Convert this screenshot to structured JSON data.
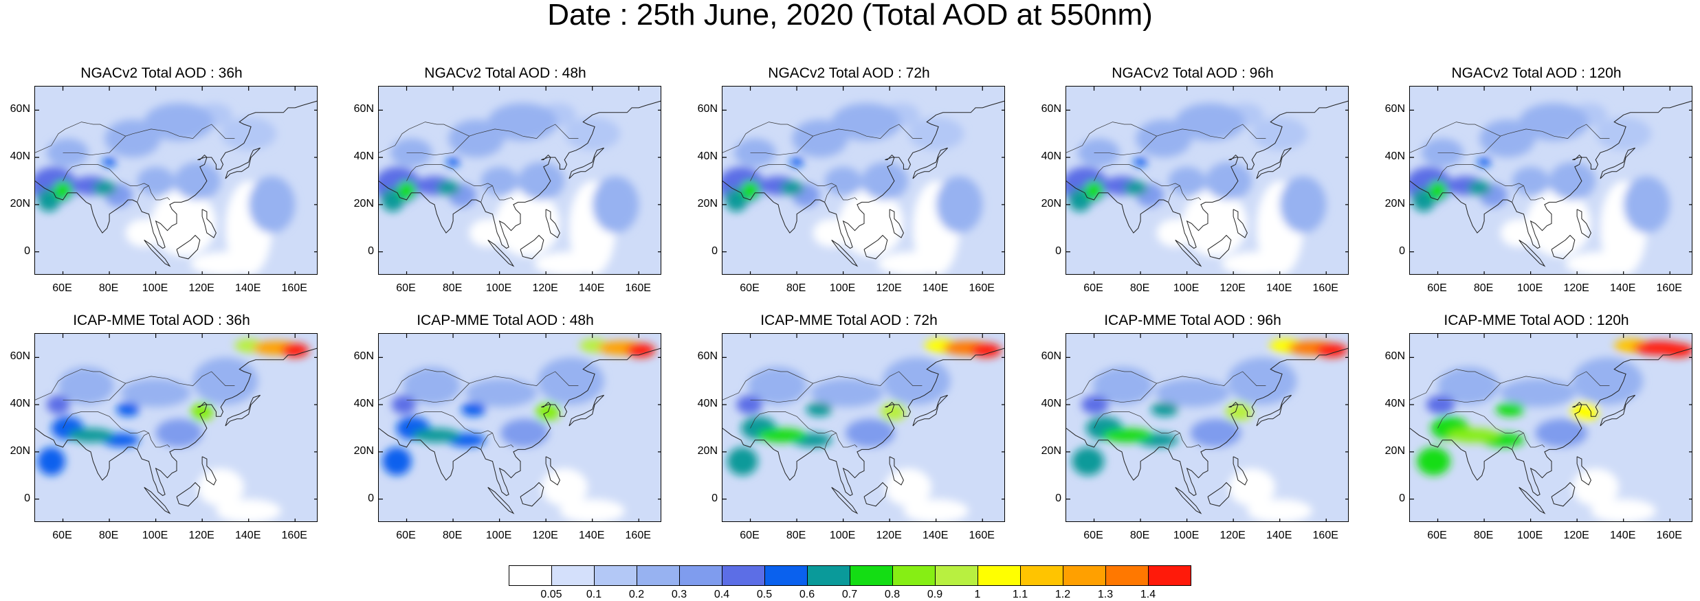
{
  "title": "Date : 25th June, 2020 (Total AOD at 550nm)",
  "panels": [
    {
      "title": "NGACv2 Total AOD : 36h",
      "model": "NGACv2",
      "lead": "36h"
    },
    {
      "title": "NGACv2 Total AOD : 48h",
      "model": "NGACv2",
      "lead": "48h"
    },
    {
      "title": "NGACv2 Total AOD : 72h",
      "model": "NGACv2",
      "lead": "72h"
    },
    {
      "title": "NGACv2 Total AOD : 96h",
      "model": "NGACv2",
      "lead": "96h"
    },
    {
      "title": "NGACv2 Total AOD : 120h",
      "model": "NGACv2",
      "lead": "120h"
    },
    {
      "title": "ICAP-MME Total AOD : 36h",
      "model": "ICAP-MME",
      "lead": "36h"
    },
    {
      "title": "ICAP-MME Total AOD : 48h",
      "model": "ICAP-MME",
      "lead": "48h"
    },
    {
      "title": "ICAP-MME Total AOD : 72h",
      "model": "ICAP-MME",
      "lead": "72h"
    },
    {
      "title": "ICAP-MME Total AOD : 96h",
      "model": "ICAP-MME",
      "lead": "96h"
    },
    {
      "title": "ICAP-MME Total AOD : 120h",
      "model": "ICAP-MME",
      "lead": "120h"
    }
  ],
  "map": {
    "lon_range": [
      48,
      170
    ],
    "lat_range": [
      -10,
      70
    ],
    "lon_ticks": [
      "60E",
      "80E",
      "100E",
      "120E",
      "140E",
      "160E"
    ],
    "lon_tick_values": [
      60,
      80,
      100,
      120,
      140,
      160
    ],
    "lat_ticks": [
      "60N",
      "40N",
      "20N",
      "0"
    ],
    "lat_tick_values": [
      60,
      40,
      20,
      0
    ]
  },
  "colorbar": {
    "labels": [
      "0.05",
      "0.1",
      "0.2",
      "0.3",
      "0.4",
      "0.5",
      "0.6",
      "0.7",
      "0.8",
      "0.9",
      "1",
      "1.1",
      "1.2",
      "1.3",
      "1.4"
    ],
    "colors": [
      "#ffffff",
      "#d4e0fb",
      "#b3c8f6",
      "#97b2f1",
      "#7f9cee",
      "#5c6ee6",
      "#0a61ee",
      "#0a9a9a",
      "#14dd14",
      "#86ee14",
      "#b8f040",
      "#ffff00",
      "#ffc400",
      "#ffa000",
      "#ff7800",
      "#ff1a0a"
    ]
  }
}
